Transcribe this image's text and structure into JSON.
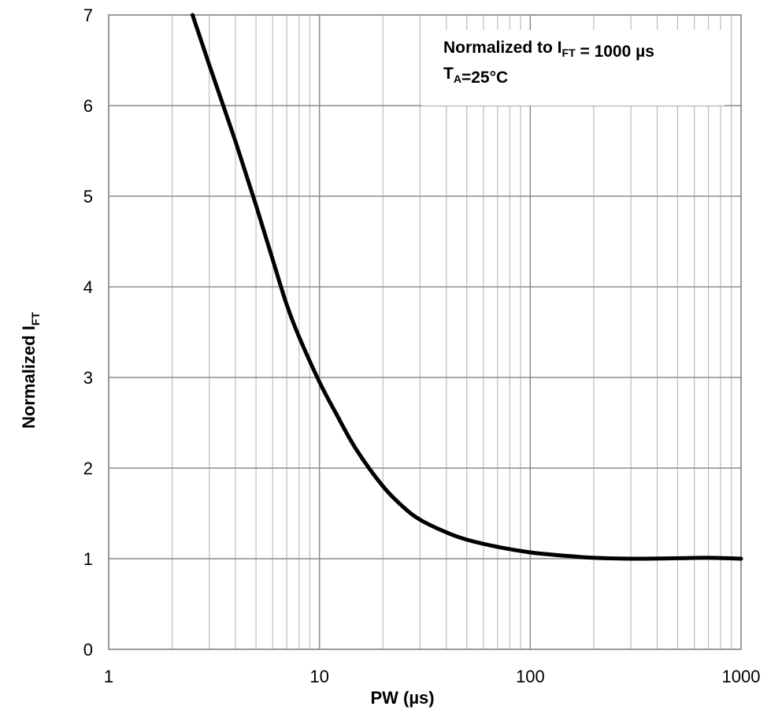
{
  "chart_data": {
    "type": "line",
    "title": "",
    "xlabel": "PW (µs)",
    "ylabel": {
      "main": "Normalized I",
      "sub": "FT"
    },
    "x_scale": "log",
    "xlim": [
      1,
      1000
    ],
    "ylim": [
      0,
      7
    ],
    "grid": true,
    "x_ticks": [
      "1",
      "10",
      "100",
      "1000"
    ],
    "y_ticks": [
      "0",
      "1",
      "2",
      "3",
      "4",
      "5",
      "6",
      "7"
    ],
    "annotations": [
      {
        "parts": [
          {
            "text": "Normalized to I"
          },
          {
            "text": "FT",
            "sub": true
          },
          {
            "text": " = 1000 µs"
          }
        ]
      },
      {
        "parts": [
          {
            "text": "T"
          },
          {
            "text": "A",
            "sub": true
          },
          {
            "text": "=25°C"
          }
        ]
      }
    ],
    "series": [
      {
        "color": "#000000",
        "x": [
          2.5,
          3,
          4,
          5,
          6,
          7,
          8,
          10,
          12,
          15,
          20,
          25,
          30,
          40,
          50,
          70,
          100,
          150,
          200,
          300,
          500,
          700,
          1000
        ],
        "y": [
          7.0,
          6.45,
          5.6,
          4.9,
          4.3,
          3.8,
          3.45,
          2.95,
          2.6,
          2.2,
          1.8,
          1.57,
          1.43,
          1.29,
          1.21,
          1.13,
          1.07,
          1.03,
          1.01,
          1.0,
          1.005,
          1.01,
          1.0
        ]
      }
    ]
  }
}
